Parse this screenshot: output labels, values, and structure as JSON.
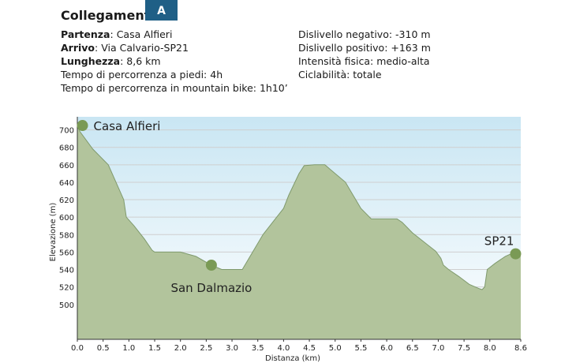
{
  "header": {
    "title": "Collegamento",
    "badge": "A"
  },
  "info_left": [
    {
      "label": "Partenza",
      "sep": ": ",
      "value": "Casa Alfieri"
    },
    {
      "label": "Arrivo",
      "sep": ": ",
      "value": "Via Calvario-SP21"
    },
    {
      "label": "Lunghezza",
      "sep": ": ",
      "value": "8,6 km"
    },
    {
      "label": "",
      "sep": "",
      "value": "Tempo di percorrenza a piedi: 4h"
    },
    {
      "label": "",
      "sep": "",
      "value": "Tempo di percorrenza in mountain bike: 1h10’"
    }
  ],
  "info_right": [
    "Dislivello negativo: -310 m",
    "Dislivello positivo: +163 m",
    "Intensità fisica: medio-alta",
    "Ciclabilità: totale"
  ],
  "colors": {
    "badge": "#1f5f86",
    "sky_top": "#c9e6f3",
    "sky_bottom": "#ffffff",
    "terrain": "#b2c49c",
    "terrain_line": "#7f9a6d",
    "marker": "#7a9a55"
  },
  "chart_data": {
    "type": "area",
    "title": "",
    "xlabel": "Distanza (km)",
    "ylabel": "Elevazione (m)",
    "xlim": [
      0,
      8.6
    ],
    "ylim": [
      460,
      715
    ],
    "grid": true,
    "x_ticks": [
      0.0,
      0.5,
      1.0,
      1.5,
      2.0,
      2.5,
      3.0,
      3.5,
      4.0,
      4.5,
      5.0,
      5.5,
      6.0,
      6.5,
      7.0,
      7.5,
      8.0,
      8.6
    ],
    "x_tick_labels": [
      "0.0",
      "0.5",
      "1.0",
      "1.5",
      "2.0",
      "2.5",
      "3.0",
      "3.5",
      "4.0",
      "4.5",
      "5.0",
      "5.5",
      "6.0",
      "6.5",
      "7.0",
      "7.5",
      "8.0",
      "8.6"
    ],
    "y_ticks": [
      500,
      520,
      540,
      560,
      580,
      600,
      620,
      640,
      660,
      680,
      700
    ],
    "series": [
      {
        "x": [
          0.0,
          0.05,
          0.3,
          0.6,
          0.9,
          0.95,
          1.1,
          1.3,
          1.45,
          1.5,
          2.0,
          2.3,
          2.6,
          2.8,
          3.0,
          3.2,
          3.4,
          3.6,
          3.8,
          4.0,
          4.1,
          4.3,
          4.4,
          4.6,
          4.8,
          4.9,
          5.0,
          5.2,
          5.3,
          5.5,
          5.7,
          6.0,
          6.2,
          6.3,
          6.5,
          6.8,
          6.95,
          7.05,
          7.1,
          7.2,
          7.4,
          7.6,
          7.8,
          7.85,
          7.9,
          7.95,
          8.1,
          8.3,
          8.45,
          8.6
        ],
        "y": [
          705,
          698,
          678,
          660,
          620,
          600,
          590,
          575,
          562,
          560,
          560,
          555,
          545,
          540,
          540,
          540,
          560,
          580,
          595,
          610,
          625,
          650,
          659,
          660,
          660,
          655,
          650,
          640,
          630,
          610,
          598,
          598,
          598,
          594,
          582,
          568,
          561,
          553,
          545,
          540,
          532,
          523,
          518,
          517,
          520,
          540,
          547,
          555,
          559,
          558
        ]
      }
    ],
    "points": [
      {
        "label": "Casa Alfieri",
        "x": 0.1,
        "y": 705
      },
      {
        "label": "San Dalmazio",
        "x": 2.6,
        "y": 545
      },
      {
        "label": "SP21",
        "x": 8.5,
        "y": 558
      }
    ]
  }
}
